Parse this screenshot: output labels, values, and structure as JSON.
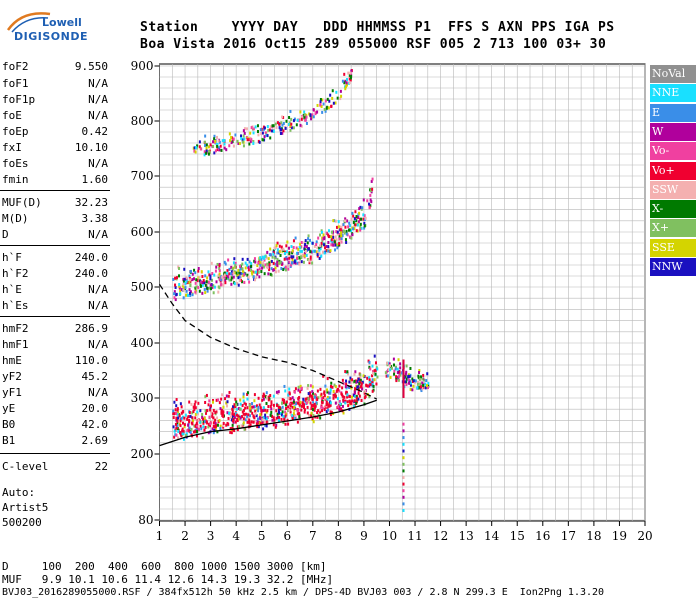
{
  "logo": {
    "line1": "Lowell",
    "line2": "DIGISONDE"
  },
  "header": {
    "row1": "Station    YYYY DAY   DDD HHMMSS P1  FFS S AXN PPS IGA PS",
    "row2": "Boa Vista 2016 Oct15 289 055000 RSF 005 2 713 100 03+ 30"
  },
  "params": [
    {
      "name": "foF2",
      "value": "9.550"
    },
    {
      "name": "foF1",
      "value": "N/A"
    },
    {
      "name": "foF1p",
      "value": "N/A"
    },
    {
      "name": "foE",
      "value": "N/A"
    },
    {
      "name": "foEp",
      "value": "0.42"
    },
    {
      "name": "fxI",
      "value": "10.10"
    },
    {
      "name": "foEs",
      "value": "N/A"
    },
    {
      "name": "fmin",
      "value": "1.60"
    },
    {
      "name": "MUF(D)",
      "value": "32.23"
    },
    {
      "name": "M(D)",
      "value": "3.38"
    },
    {
      "name": "D",
      "value": "N/A"
    },
    {
      "name": "h`F",
      "value": "240.0"
    },
    {
      "name": "h`F2",
      "value": "240.0"
    },
    {
      "name": "h`E",
      "value": "N/A"
    },
    {
      "name": "h`Es",
      "value": "N/A"
    },
    {
      "name": "hmF2",
      "value": "286.9"
    },
    {
      "name": "hmF1",
      "value": "N/A"
    },
    {
      "name": "hmE",
      "value": "110.0"
    },
    {
      "name": "yF2",
      "value": "45.2"
    },
    {
      "name": "yF1",
      "value": "N/A"
    },
    {
      "name": "yE",
      "value": "20.0"
    },
    {
      "name": "B0",
      "value": "42.0"
    },
    {
      "name": "B1",
      "value": "2.69"
    },
    {
      "name": "C-level",
      "value": "22"
    }
  ],
  "auto": {
    "line1": "Auto:",
    "line2": "Artist5",
    "line3": "500200"
  },
  "legend": [
    {
      "label": "NoVal",
      "color": "#909090",
      "text": "#ffffff"
    },
    {
      "label": "NNE",
      "color": "#19e0ff",
      "text": "#ffffff"
    },
    {
      "label": "E",
      "color": "#3a8ee8",
      "text": "#ffffff"
    },
    {
      "label": "W",
      "color": "#b0009c",
      "text": "#ffffff"
    },
    {
      "label": "Vo-",
      "color": "#f040a0",
      "text": "#ffffff"
    },
    {
      "label": "Vo+",
      "color": "#f00030",
      "text": "#ffffff"
    },
    {
      "label": "SSW",
      "color": "#f4b0b0",
      "text": "#ffffff"
    },
    {
      "label": "X-",
      "color": "#007a00",
      "text": "#ffffff"
    },
    {
      "label": "X+",
      "color": "#80c060",
      "text": "#ffffff"
    },
    {
      "label": "SSE",
      "color": "#d4d400",
      "text": "#ffffff"
    },
    {
      "label": "NNW",
      "color": "#1a10c0",
      "text": "#ffffff"
    }
  ],
  "footer": {
    "d_line": "D     100  200  400  600  800 1000 1500 3000 [km]",
    "muf_line": "MUF   9.9 10.1 10.6 11.4 12.6 14.3 19.3 32.2 [MHz]",
    "file_line": "BVJ03_2016289055000.RSF / 384fx512h 50 kHz 2.5 km / DPS-4D BVJ03 003 / 2.8 N 299.3 E  Ion2Png 1.3.20"
  },
  "chart_data": {
    "type": "scatter",
    "xlim": [
      1,
      20
    ],
    "ylim": [
      80,
      900
    ],
    "xticks": [
      "1",
      "2",
      "3",
      "4",
      "5",
      "6",
      "7",
      "8",
      "9",
      "10",
      "11",
      "12",
      "13",
      "14",
      "15",
      "16",
      "17",
      "18",
      "19",
      "20"
    ],
    "yticks": [
      "80",
      "200",
      "300",
      "400",
      "500",
      "600",
      "700",
      "800",
      "900"
    ],
    "grid": true,
    "ionogram_traces": [
      {
        "name": "F2 trace",
        "x": [
          1.5,
          2,
          3,
          4,
          5,
          6,
          7,
          8,
          9,
          9.5
        ],
        "y": [
          245,
          247,
          252,
          258,
          264,
          270,
          278,
          290,
          310,
          340
        ]
      },
      {
        "name": "second hop",
        "x": [
          1.5,
          2,
          3,
          4,
          5,
          6,
          7,
          8,
          9,
          9.3
        ],
        "y": [
          490,
          495,
          505,
          515,
          530,
          545,
          562,
          585,
          620,
          670
        ]
      },
      {
        "name": "third hop",
        "x": [
          2.3,
          3,
          4,
          5,
          6,
          7,
          8,
          8.5
        ],
        "y": [
          745,
          750,
          760,
          775,
          790,
          810,
          845,
          885
        ]
      },
      {
        "name": "diffuse spread",
        "x": [
          9.8,
          10.2,
          10.5,
          11,
          11.5
        ],
        "y": [
          350,
          345,
          335,
          325,
          325
        ]
      }
    ],
    "profile_solid": {
      "x": [
        1,
        2,
        3,
        4,
        5,
        6,
        7,
        8,
        9,
        9.5
      ],
      "y": [
        215,
        230,
        240,
        245,
        252,
        259,
        266,
        275,
        288,
        296
      ]
    },
    "profile_dashed": {
      "x": [
        1,
        1.5,
        2,
        3,
        4,
        5,
        6,
        7,
        8,
        9,
        9.5
      ],
      "y": [
        505,
        470,
        440,
        410,
        390,
        375,
        365,
        350,
        330,
        310,
        298
      ]
    },
    "vertical_marker": {
      "x": 10.55,
      "y": [
        300,
        370
      ]
    }
  }
}
